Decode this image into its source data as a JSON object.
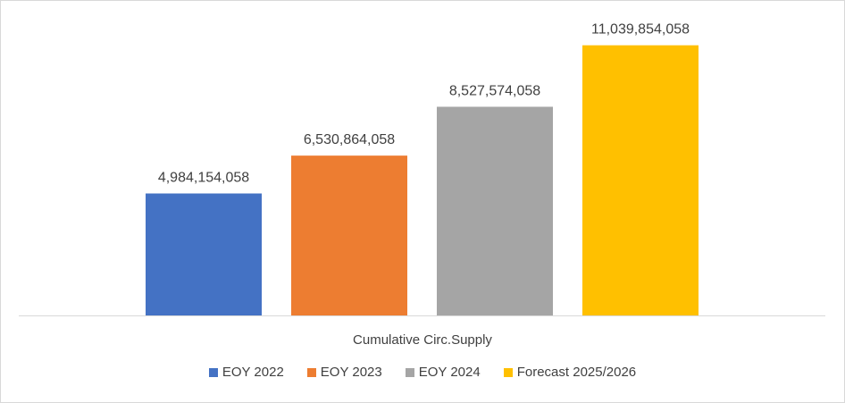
{
  "chart_data": {
    "type": "bar",
    "categories": [
      "Cumulative Circ.Supply"
    ],
    "series": [
      {
        "name": "EOY 2022",
        "values": [
          4984154058
        ],
        "label": "4,984,154,058",
        "color": "#4472c4"
      },
      {
        "name": "EOY 2023",
        "values": [
          6530864058
        ],
        "label": "6,530,864,058",
        "color": "#ed7d31"
      },
      {
        "name": "EOY 2024",
        "values": [
          8527574058
        ],
        "label": "8,527,574,058",
        "color": "#a5a5a5"
      },
      {
        "name": "Forecast 2025/2026",
        "values": [
          11039854058
        ],
        "label": "11,039,854,058",
        "color": "#ffc000"
      }
    ],
    "title": "",
    "xlabel": "",
    "ylabel": "",
    "ylim": [
      0,
      13000000000
    ],
    "grid": false,
    "legend": "bottom",
    "axis_color": "#d9d9d9"
  }
}
